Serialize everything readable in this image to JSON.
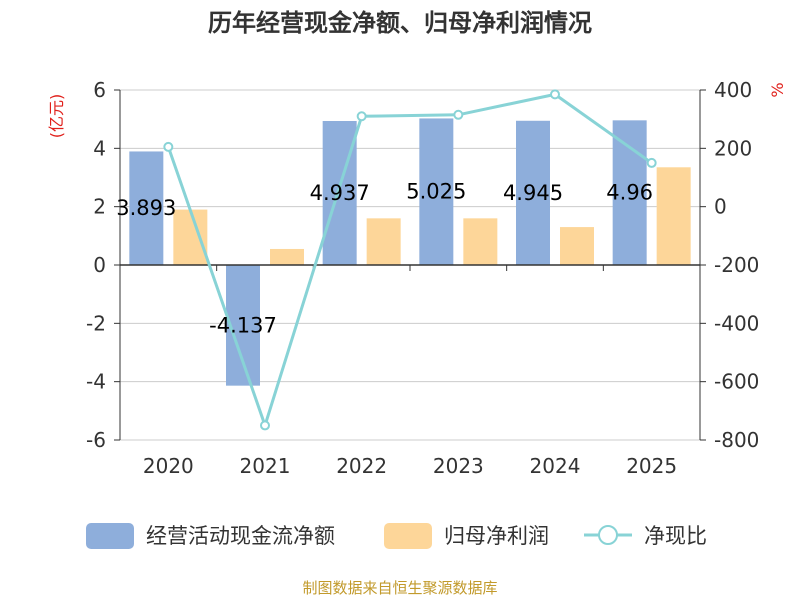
{
  "chart_data": {
    "type": "bar",
    "title": "历年经营现金净额、归母净利润情况",
    "categories": [
      "2020",
      "2021",
      "2022",
      "2023",
      "2024",
      "2025"
    ],
    "y_left": {
      "unit": "(亿元)",
      "min": -6,
      "max": 6,
      "ticks": [
        -6,
        -4,
        -2,
        0,
        2,
        4,
        6
      ]
    },
    "y_right": {
      "unit": "%",
      "min": -800,
      "max": 400,
      "ticks": [
        -800,
        -600,
        -400,
        -200,
        0,
        200,
        400
      ]
    },
    "series": [
      {
        "name": "经营活动现金流净额",
        "type": "bar",
        "axis": "left",
        "color": "#8eaedb",
        "values": [
          3.893,
          -4.137,
          4.937,
          5.025,
          4.945,
          4.96
        ],
        "labels": [
          "3.893",
          "-4.137",
          "4.937",
          "5.025",
          "4.945",
          "4.96"
        ]
      },
      {
        "name": "归母净利润",
        "type": "bar",
        "axis": "left",
        "color": "#fdd699",
        "values": [
          1.9,
          0.55,
          1.6,
          1.6,
          1.3,
          3.35
        ]
      },
      {
        "name": "净现比",
        "type": "line",
        "axis": "right",
        "color": "#88d3d6",
        "values": [
          205,
          -750,
          310,
          315,
          385,
          150
        ]
      }
    ],
    "source": "制图数据来自恒生聚源数据库"
  }
}
